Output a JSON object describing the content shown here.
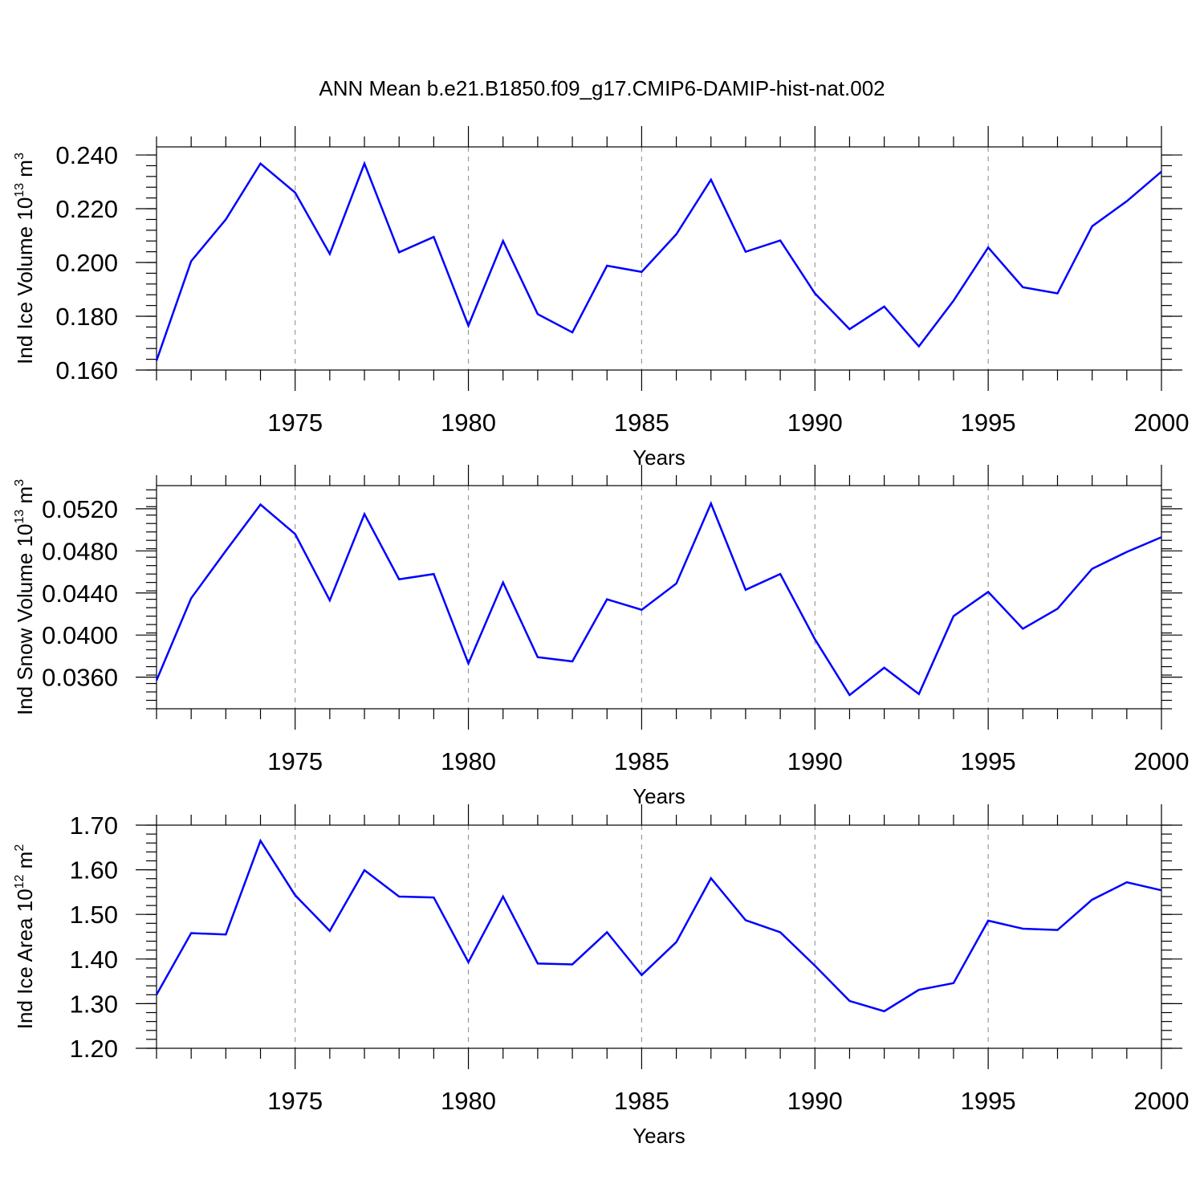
{
  "page": {
    "background": "#ffffff",
    "line_color": "#0000ff"
  },
  "chart_data": [
    {
      "type": "line",
      "title": "ANN Mean b.e21.B1850.f09_g17.CMIP6-DAMIP-hist-nat.002",
      "xlabel": "Years",
      "ylabel": "Ind Ice Volume 10",
      "ylabel_exp": "13",
      "ylabel_unit": " m",
      "ylabel_unit_exp": "3",
      "xlim": [
        1971,
        2000
      ],
      "ylim": [
        0.16,
        0.243
      ],
      "x_ticks": [
        1975,
        1980,
        1985,
        1990,
        1995,
        2000
      ],
      "x_tick_labels": [
        "1975",
        "1980",
        "1985",
        "1990",
        "1995",
        "2000"
      ],
      "y_ticks": [
        0.16,
        0.18,
        0.2,
        0.22,
        0.24
      ],
      "y_tick_labels": [
        "0.160",
        "0.180",
        "0.200",
        "0.220",
        "0.240"
      ],
      "y_minor_step": 0.004,
      "grid": "dashed vertical lines at labeled years",
      "series": [
        {
          "name": "Ind Ice Volume",
          "x": [
            1971,
            1972,
            1973,
            1974,
            1975,
            1976,
            1977,
            1978,
            1979,
            1980,
            1981,
            1982,
            1983,
            1984,
            1985,
            1986,
            1987,
            1988,
            1989,
            1990,
            1991,
            1992,
            1993,
            1994,
            1995,
            1996,
            1997,
            1998,
            1999,
            2000
          ],
          "values": [
            0.1635,
            0.2005,
            0.216,
            0.2368,
            0.226,
            0.2032,
            0.2368,
            0.2038,
            0.2095,
            0.1765,
            0.208,
            0.1808,
            0.174,
            0.1988,
            0.1965,
            0.2105,
            0.2308,
            0.204,
            0.2082,
            0.1885,
            0.1752,
            0.1836,
            0.1688,
            0.1858,
            0.2056,
            0.1908,
            0.1885,
            0.2135,
            0.2228,
            0.2338
          ]
        }
      ]
    },
    {
      "type": "line",
      "title": "",
      "xlabel": "Years",
      "ylabel": "Ind Snow Volume 10",
      "ylabel_exp": "13",
      "ylabel_unit": " m",
      "ylabel_unit_exp": "3",
      "xlim": [
        1971,
        2000
      ],
      "ylim": [
        0.033,
        0.0542
      ],
      "x_ticks": [
        1975,
        1980,
        1985,
        1990,
        1995,
        2000
      ],
      "x_tick_labels": [
        "1975",
        "1980",
        "1985",
        "1990",
        "1995",
        "2000"
      ],
      "y_ticks": [
        0.036,
        0.04,
        0.044,
        0.048,
        0.052
      ],
      "y_tick_labels": [
        "0.0360",
        "0.0400",
        "0.0440",
        "0.0480",
        "0.0520"
      ],
      "y_minor_step": 0.0008,
      "grid": "dashed vertical lines at labeled years",
      "series": [
        {
          "name": "Ind Snow Volume",
          "x": [
            1971,
            1972,
            1973,
            1974,
            1975,
            1976,
            1977,
            1978,
            1979,
            1980,
            1981,
            1982,
            1983,
            1984,
            1985,
            1986,
            1987,
            1988,
            1989,
            1990,
            1991,
            1992,
            1993,
            1994,
            1995,
            1996,
            1997,
            1998,
            1999,
            2000
          ],
          "values": [
            0.0357,
            0.0435,
            0.048,
            0.0524,
            0.0496,
            0.0433,
            0.0515,
            0.0453,
            0.0458,
            0.0373,
            0.045,
            0.0379,
            0.0375,
            0.0434,
            0.0424,
            0.0449,
            0.0525,
            0.0443,
            0.0458,
            0.0396,
            0.0343,
            0.0369,
            0.0344,
            0.0418,
            0.0441,
            0.0406,
            0.0425,
            0.0463,
            0.0479,
            0.0493
          ]
        }
      ]
    },
    {
      "type": "line",
      "title": "",
      "xlabel": "Years",
      "ylabel": "Ind Ice Area 10",
      "ylabel_exp": "12",
      "ylabel_unit": " m",
      "ylabel_unit_exp": "2",
      "xlim": [
        1971,
        2000
      ],
      "ylim": [
        1.2,
        1.7
      ],
      "x_ticks": [
        1975,
        1980,
        1985,
        1990,
        1995,
        2000
      ],
      "x_tick_labels": [
        "1975",
        "1980",
        "1985",
        "1990",
        "1995",
        "2000"
      ],
      "y_ticks": [
        1.2,
        1.3,
        1.4,
        1.5,
        1.6,
        1.7
      ],
      "y_tick_labels": [
        "1.20",
        "1.30",
        "1.40",
        "1.50",
        "1.60",
        "1.70"
      ],
      "y_minor_step": 0.02,
      "grid": "dashed vertical lines at labeled years",
      "series": [
        {
          "name": "Ind Ice Area",
          "x": [
            1971,
            1972,
            1973,
            1974,
            1975,
            1976,
            1977,
            1978,
            1979,
            1980,
            1981,
            1982,
            1983,
            1984,
            1985,
            1986,
            1987,
            1988,
            1989,
            1990,
            1991,
            1992,
            1993,
            1994,
            1995,
            1996,
            1997,
            1998,
            1999,
            2000
          ],
          "values": [
            1.32,
            1.458,
            1.455,
            1.665,
            1.543,
            1.463,
            1.599,
            1.54,
            1.538,
            1.393,
            1.54,
            1.39,
            1.388,
            1.46,
            1.364,
            1.438,
            1.581,
            1.487,
            1.46,
            1.385,
            1.306,
            1.283,
            1.331,
            1.346,
            1.486,
            1.468,
            1.465,
            1.533,
            1.572,
            1.554
          ]
        }
      ]
    }
  ]
}
